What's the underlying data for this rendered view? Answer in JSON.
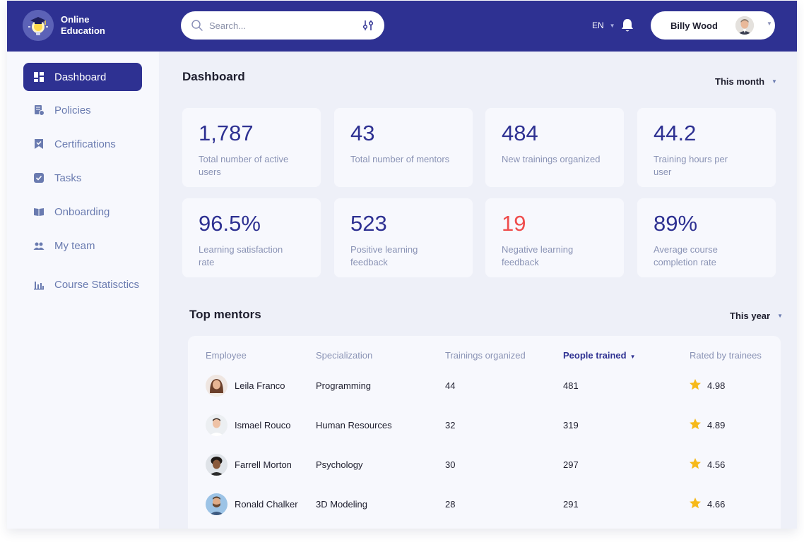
{
  "brand": {
    "line1": "Online",
    "line2": "Education"
  },
  "search": {
    "placeholder": "Search..."
  },
  "header": {
    "language": "EN",
    "user_name": "Billy Wood"
  },
  "sidebar": {
    "items": [
      {
        "label": "Dashboard",
        "icon": "dashboard-icon",
        "active": true
      },
      {
        "label": "Policies",
        "icon": "policies-icon"
      },
      {
        "label": "Certifications",
        "icon": "certification-icon"
      },
      {
        "label": "Tasks",
        "icon": "tasks-icon"
      },
      {
        "label": "Onboarding",
        "icon": "onboarding-icon"
      },
      {
        "label": "My team",
        "icon": "team-icon"
      },
      {
        "label": "Course Statisctics",
        "icon": "chart-icon"
      }
    ]
  },
  "dashboard": {
    "title": "Dashboard",
    "period": "This month",
    "stats": [
      {
        "value": "1,787",
        "label": "Total number of active users"
      },
      {
        "value": "43",
        "label": "Total number of mentors"
      },
      {
        "value": "484",
        "label": "New trainings organized"
      },
      {
        "value": "44.2",
        "label": "Training hours per user"
      },
      {
        "value": "96.5%",
        "label": "Learning satisfaction rate"
      },
      {
        "value": "523",
        "label": "Positive learning feedback"
      },
      {
        "value": "19",
        "label": "Negative learning feedback"
      },
      {
        "value": "89%",
        "label": "Average course completion rate"
      }
    ]
  },
  "mentors": {
    "title": "Top mentors",
    "period": "This year",
    "columns": [
      "Employee",
      "Specialization",
      "Trainings organized",
      "People trained",
      "Rated by trainees"
    ],
    "rows": [
      {
        "name": "Leila Franco",
        "specialization": "Programming",
        "trainings": "44",
        "people": "481",
        "rating": "4.98"
      },
      {
        "name": "Ismael Rouco",
        "specialization": "Human Resources",
        "trainings": "32",
        "people": "319",
        "rating": "4.89"
      },
      {
        "name": "Farrell Morton",
        "specialization": "Psychology",
        "trainings": "30",
        "people": "297",
        "rating": "4.56"
      },
      {
        "name": "Ronald Chalker",
        "specialization": "3D Modeling",
        "trainings": "28",
        "people": "291",
        "rating": "4.66"
      }
    ]
  },
  "colors": {
    "primary": "#2e3192",
    "negative": "#ef4d4d",
    "star": "#f6b91a",
    "muted": "#8a93b5"
  }
}
